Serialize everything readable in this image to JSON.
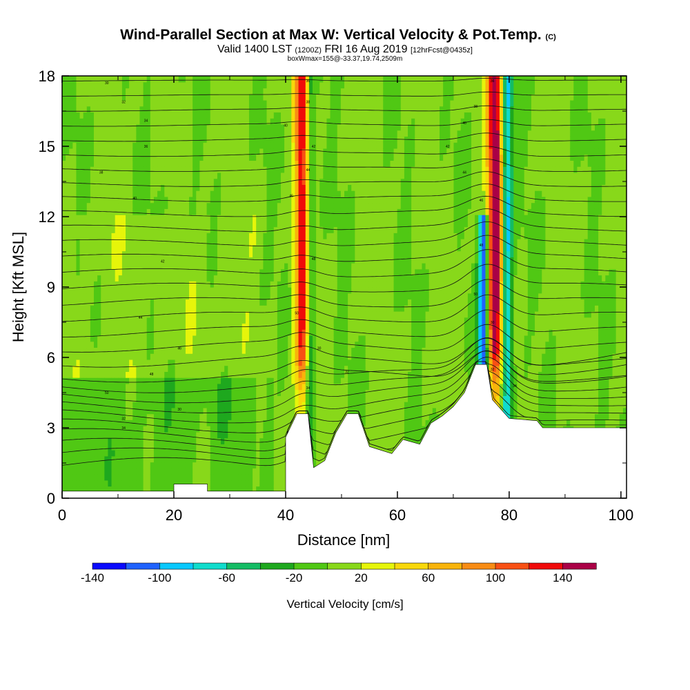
{
  "chart_data": {
    "type": "heatmap",
    "title": "Wind-Parallel Section at Max W: Vertical Velocity & Pot.Temp.",
    "title_mark": "(C)",
    "subtitle_valid": "Valid 1400 LST",
    "subtitle_utc": "(1200Z)",
    "subtitle_date": "FRI 16 Aug 2019",
    "subtitle_fcst": "[12hrFcst@0435z]",
    "subtitle2": "boxWmax=155@-33.37,19.74,2509m",
    "xlabel": "Distance [nm]",
    "ylabel": "Height [Kft MSL]",
    "xlim": [
      0,
      101
    ],
    "ylim": [
      0,
      18
    ],
    "x_ticks": [
      "0",
      "20",
      "40",
      "60",
      "80",
      "100"
    ],
    "y_ticks": [
      "0",
      "3",
      "6",
      "9",
      "12",
      "15",
      "18"
    ],
    "colorbar": {
      "label": "Vertical Velocity [cm/s]",
      "tick_labels": [
        "-140",
        "-100",
        "-60",
        "-20",
        "20",
        "60",
        "100",
        "140"
      ],
      "colors": [
        "#0a0aff",
        "#1f62ff",
        "#08c8ff",
        "#10dccc",
        "#14bc64",
        "#1ea81e",
        "#50c814",
        "#88d81a",
        "#e6f50a",
        "#f8d80a",
        "#f8b40a",
        "#f88c14",
        "#f85014",
        "#f00a0a",
        "#aa0046"
      ]
    },
    "terrain_kft": [
      [
        0,
        0.3
      ],
      [
        20,
        0.3
      ],
      [
        20,
        0.6
      ],
      [
        26,
        0.6
      ],
      [
        26,
        0.3
      ],
      [
        40,
        0.3
      ],
      [
        40,
        2.6
      ],
      [
        42,
        3.6
      ],
      [
        44,
        3.6
      ],
      [
        45,
        1.3
      ],
      [
        47,
        1.6
      ],
      [
        49,
        2.8
      ],
      [
        51,
        3.6
      ],
      [
        53,
        3.6
      ],
      [
        55,
        2.2
      ],
      [
        59,
        1.9
      ],
      [
        61,
        2.5
      ],
      [
        64,
        2.3
      ],
      [
        66,
        3.2
      ],
      [
        68,
        3.5
      ],
      [
        70,
        3.9
      ],
      [
        72,
        4.5
      ],
      [
        74,
        5.7
      ],
      [
        76,
        5.7
      ],
      [
        77,
        4.2
      ],
      [
        80,
        3.4
      ],
      [
        85,
        3.3
      ],
      [
        86,
        3.0
      ],
      [
        91,
        3.0
      ],
      [
        101,
        3.0
      ]
    ],
    "updrafts": [
      {
        "x": 43.0,
        "w": 1.3,
        "peak": 135,
        "ztop": 18
      },
      {
        "x": 77.5,
        "w": 1.4,
        "peak": 155,
        "ztop": 18
      }
    ],
    "downdrafts": [
      {
        "x": 44.3,
        "w": 0.9,
        "peak": -60,
        "ztop": 18
      },
      {
        "x": 75.4,
        "w": 0.9,
        "peak": -125,
        "ztop": 12
      },
      {
        "x": 79.6,
        "w": 1.0,
        "peak": -100,
        "ztop": 18
      }
    ],
    "theta_labels": [
      "30",
      "32",
      "34",
      "36",
      "38",
      "40",
      "42",
      "44",
      "46",
      "48",
      "50"
    ]
  }
}
